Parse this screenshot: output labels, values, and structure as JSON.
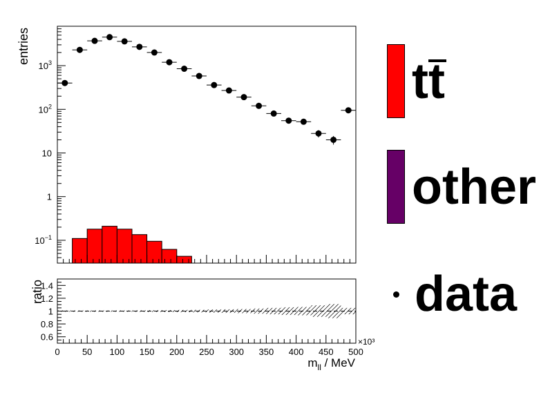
{
  "chart_data": {
    "type": "bar",
    "x_unit_multiplier": "×10³",
    "x_range": [
      0,
      500
    ],
    "bin_edges": [
      0,
      25,
      50,
      75,
      100,
      125,
      150,
      175,
      200,
      225,
      250,
      275,
      300,
      325,
      350,
      375,
      400,
      425,
      450,
      475,
      500
    ],
    "main": {
      "ylabel": "entries",
      "yscale": "log",
      "ylim": [
        0.03,
        8000
      ],
      "y_ticks": [
        {
          "value": 0.1,
          "base": "10",
          "exp": "−1"
        },
        {
          "value": 1,
          "label": "1"
        },
        {
          "value": 10,
          "label": "10"
        },
        {
          "value": 100,
          "base": "10",
          "exp": "2"
        },
        {
          "value": 1000,
          "base": "10",
          "exp": "3"
        }
      ],
      "series": [
        {
          "name": "tt̄",
          "kind": "histogram",
          "color": "#ff0000",
          "values": [
            0,
            0.11,
            0.18,
            0.21,
            0.18,
            0.135,
            0.095,
            0.062,
            0.043,
            0,
            0,
            0,
            0,
            0,
            0,
            0,
            0,
            0,
            0,
            0
          ]
        },
        {
          "name": "other",
          "kind": "histogram",
          "color": "#660066",
          "values": [
            0,
            0,
            0,
            0,
            0,
            0,
            0,
            0,
            0,
            0,
            0,
            0,
            0,
            0,
            0,
            0,
            0,
            0,
            0,
            0
          ]
        },
        {
          "name": "data",
          "kind": "points",
          "color": "#000000",
          "values": [
            400,
            2300,
            3700,
            4500,
            3600,
            2700,
            2000,
            1200,
            850,
            580,
            360,
            270,
            190,
            120,
            80,
            55,
            52,
            28,
            20,
            95
          ]
        }
      ]
    },
    "ratio": {
      "ylabel": "ratio",
      "ylim": [
        0.5,
        1.5
      ],
      "y_ticks": [
        "0.6",
        "0.8",
        "1",
        "1.2",
        "1.4"
      ],
      "uncertainty": [
        0.01,
        0.01,
        0.01,
        0.01,
        0.01,
        0.012,
        0.014,
        0.016,
        0.018,
        0.02,
        0.025,
        0.028,
        0.032,
        0.04,
        0.05,
        0.06,
        0.065,
        0.09,
        0.11,
        0.05
      ]
    },
    "x_ticks": [
      "0",
      "50",
      "100",
      "150",
      "200",
      "250",
      "300",
      "350",
      "400",
      "450",
      "500"
    ],
    "xlabel_main": "m",
    "xlabel_sub": "ll",
    "xlabel_unit": " / MeV",
    "legend": {
      "placement": "right",
      "entries": [
        {
          "label": "tt̄",
          "base": "tt",
          "color": "#ff0000",
          "style": "box"
        },
        {
          "label": "other",
          "color": "#660066",
          "style": "box"
        },
        {
          "label": "data",
          "color": "#000000",
          "style": "marker"
        }
      ]
    }
  }
}
